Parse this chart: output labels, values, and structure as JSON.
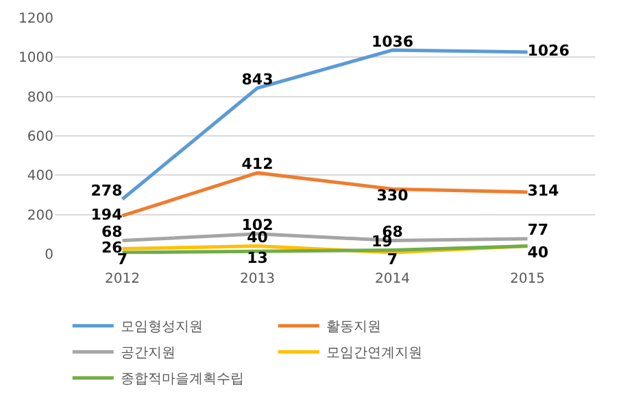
{
  "chart_data": {
    "type": "line",
    "categories": [
      "2012",
      "2013",
      "2014",
      "2015"
    ],
    "series": [
      {
        "name": "모임형성지원",
        "color": "#5b9bd5",
        "values": [
          278,
          843,
          1036,
          1026
        ]
      },
      {
        "name": "활동지원",
        "color": "#ed7d31",
        "values": [
          194,
          412,
          330,
          314
        ]
      },
      {
        "name": "공간지원",
        "color": "#a5a5a5",
        "values": [
          68,
          102,
          68,
          77
        ]
      },
      {
        "name": "모임간연계지원",
        "color": "#ffc000",
        "values": [
          26,
          40,
          7,
          40
        ],
        "value_labels": [
          "26",
          "40",
          "7",
          null
        ]
      },
      {
        "name": "종합적마을계획수립",
        "color": "#70ad47",
        "values": [
          7,
          13,
          19,
          40
        ]
      }
    ],
    "ylim": [
      0,
      1200
    ],
    "yticks": [
      0,
      200,
      400,
      600,
      800,
      1000,
      1200
    ],
    "grid": "y",
    "legend": "bottom",
    "data_labels": true,
    "marker": "none",
    "line_style": "solid"
  }
}
